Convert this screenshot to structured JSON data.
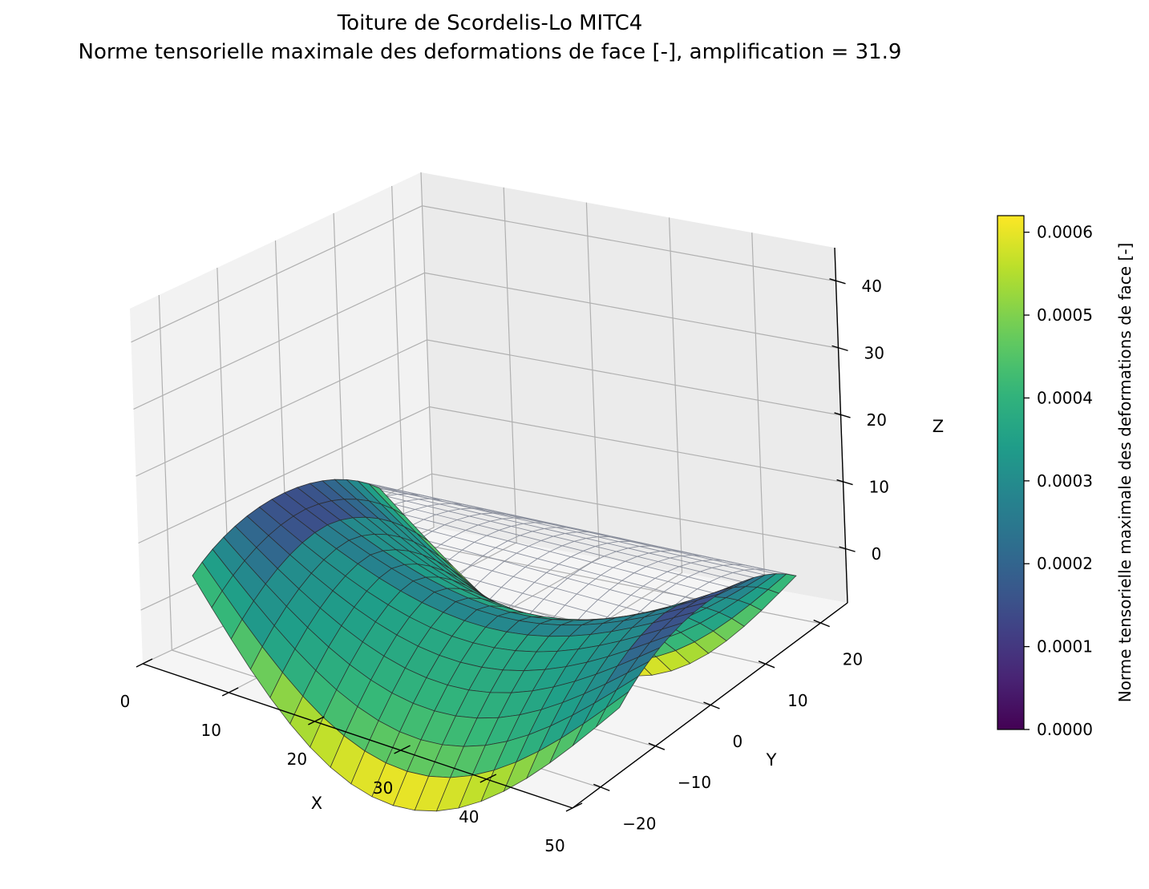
{
  "chart_data": {
    "type": "surface3d",
    "title": "Toiture de Scordelis-Lo MITC4",
    "subtitle": "Norme tensorielle maximale des deformations de face [-], amplification = 31.9",
    "xlabel": "X",
    "ylabel": "Y",
    "zlabel": "Z",
    "x_ticks": [
      "0",
      "10",
      "20",
      "30",
      "40",
      "50"
    ],
    "y_ticks": [
      "−20",
      "−10",
      "0",
      "10",
      "20"
    ],
    "z_ticks": [
      "0",
      "10",
      "20",
      "30",
      "40"
    ],
    "xlim": [
      0,
      50
    ],
    "ylim": [
      -25,
      25
    ],
    "zlim": [
      -8,
      45
    ],
    "grid": true,
    "colormap": "viridis",
    "colorbar": {
      "label": "Norme tensorielle maximale des deformations de face [-]",
      "ticks": [
        "0.0000",
        "0.0001",
        "0.0002",
        "0.0003",
        "0.0004",
        "0.0005",
        "0.0006"
      ],
      "range": [
        0,
        0.00062
      ]
    },
    "geometry": {
      "length": 50,
      "radius": 25,
      "half_angle_deg": 40,
      "mesh": [
        20,
        16
      ]
    },
    "undeformed_mesh_color": "#8a8f9c"
  }
}
